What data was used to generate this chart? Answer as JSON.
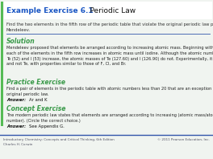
{
  "bg_color": "#f0f4f0",
  "title_blue_color": "#1a56c4",
  "title_bold": "Example Exercise 6.1",
  "title_normal": "    Periodic Law",
  "question": "Find the two elements in the fifth row of the periodic table that violate the original periodic law proposed by\nMendeleev.",
  "section1_label": "Solution",
  "section_color": "#3a9a4a",
  "solution_text": "Mendeleev proposed that elements be arranged according to increasing atomic mass. Beginning with Rb,\neach of the elements in the fifth row increases in atomic mass until iodine. Although the atomic numbers of\nTe (52) and I (53) increase, the atomic masses of Te (127.60) and I (126.90) do not. Experimentally, it is I\nand not Te, with properties similar to those of F, Cl, and Br.",
  "section2_label": "Practice Exercise",
  "practice_text": "Find a pair of elements in the periodic table with atomic numbers less than 20 that are an exception to the\noriginal periodic law.",
  "practice_answer_label": "Answer:",
  "practice_answer_text": "Ar and K",
  "section3_label": "Concept Exercise",
  "concept_text": "The modern periodic law states that elements are arranged according to increasing (atomic mass/atomic\nnumber). (Circle the correct choice.)",
  "concept_answer_label": "Answer:",
  "concept_answer_text": "See Appendix G.",
  "footer_left1": "Introductory Chemistry: Concepts and Critical Thinking, 6th Edition",
  "footer_left2": "Charles H. Corwin",
  "footer_right": "© 2011 Pearson Education, Inc.",
  "footer_color": "#555566",
  "divider_color": "#3355aa",
  "left_bar_color": "#55bb55",
  "white_bg": "#ffffff"
}
